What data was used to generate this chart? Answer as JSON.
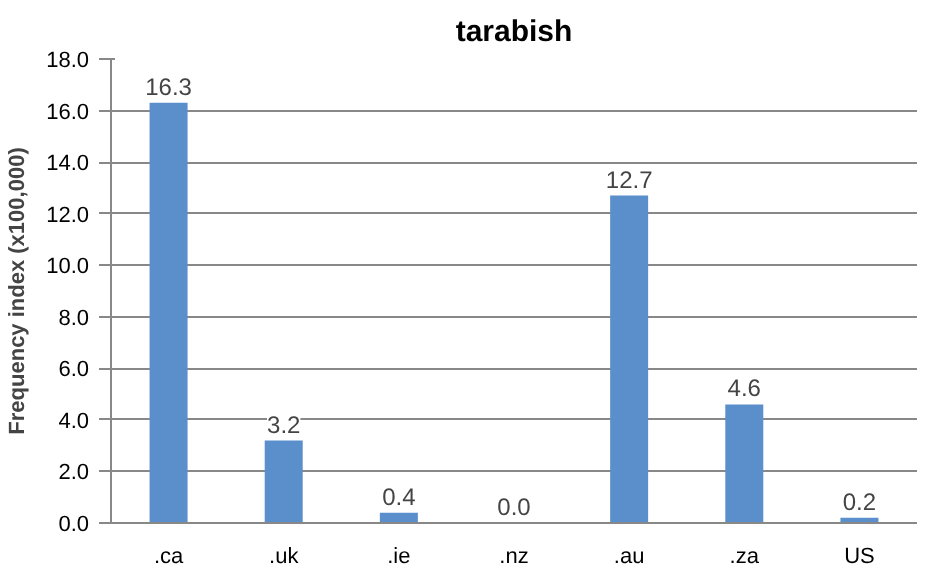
{
  "chart_data": {
    "type": "bar",
    "title": "tarabish",
    "ylabel": "Frequency index (x100,000)",
    "categories": [
      ".ca",
      ".uk",
      ".ie",
      ".nz",
      ".au",
      ".za",
      "US"
    ],
    "values": [
      16.3,
      3.2,
      0.4,
      0.0,
      12.7,
      4.6,
      0.2
    ],
    "value_labels": [
      "16.3",
      "3.2",
      "0.4",
      "0.0",
      "12.7",
      "4.6",
      "0.2"
    ],
    "color": "#5b8fcb",
    "ylim": [
      0,
      18
    ],
    "yticks": [
      {
        "value": 0,
        "label": "0.0"
      },
      {
        "value": 2,
        "label": "2.0"
      },
      {
        "value": 4,
        "label": "4.0"
      },
      {
        "value": 6,
        "label": "6.0"
      },
      {
        "value": 8,
        "label": "8.0"
      },
      {
        "value": 10,
        "label": "10.0"
      },
      {
        "value": 12,
        "label": "12.0"
      },
      {
        "value": 14,
        "label": "14.0"
      },
      {
        "value": 16,
        "label": "16.0"
      },
      {
        "value": 18,
        "label": "18.0"
      }
    ],
    "grid": "y"
  }
}
